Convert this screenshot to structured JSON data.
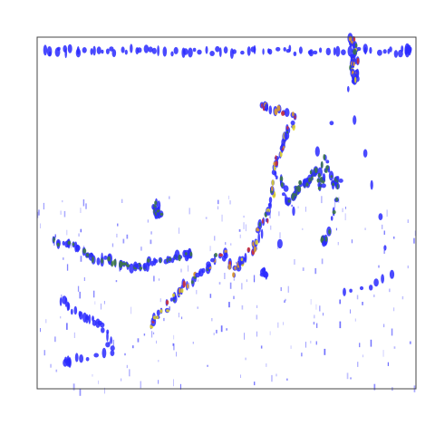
{
  "chart_data": {
    "type": "heatmap",
    "title": "",
    "xlabel": "",
    "ylabel": "",
    "xlim": [
      0,
      1
    ],
    "ylim": [
      0,
      1
    ],
    "grid": false,
    "legend": "none",
    "colormap": [
      "#2a2aff",
      "#3d7a3d",
      "#e5d820",
      "#e5a020",
      "#d03030"
    ],
    "traces": [
      {
        "name": "top-band",
        "intensity": "low",
        "points": [
          [
            0.02,
            0.96
          ],
          [
            0.08,
            0.96
          ],
          [
            0.15,
            0.96
          ],
          [
            0.22,
            0.96
          ],
          [
            0.3,
            0.96
          ],
          [
            0.38,
            0.96
          ],
          [
            0.46,
            0.96
          ],
          [
            0.54,
            0.96
          ],
          [
            0.62,
            0.96
          ],
          [
            0.7,
            0.96
          ],
          [
            0.78,
            0.96
          ],
          [
            0.86,
            0.96
          ],
          [
            0.94,
            0.96
          ],
          [
            0.98,
            0.96
          ]
        ]
      },
      {
        "name": "top-right-spike",
        "intensity": "high",
        "points": [
          [
            0.83,
            1.0
          ],
          [
            0.835,
            0.97
          ],
          [
            0.84,
            0.94
          ],
          [
            0.835,
            0.91
          ],
          [
            0.84,
            0.88
          ]
        ]
      },
      {
        "name": "main-curve",
        "intensity": "high",
        "points": [
          [
            0.3,
            0.18
          ],
          [
            0.34,
            0.23
          ],
          [
            0.38,
            0.28
          ],
          [
            0.42,
            0.32
          ],
          [
            0.45,
            0.35
          ],
          [
            0.49,
            0.39
          ],
          [
            0.52,
            0.33
          ],
          [
            0.55,
            0.37
          ],
          [
            0.58,
            0.42
          ],
          [
            0.6,
            0.48
          ],
          [
            0.62,
            0.55
          ],
          [
            0.63,
            0.62
          ],
          [
            0.64,
            0.68
          ],
          [
            0.66,
            0.72
          ],
          [
            0.68,
            0.78
          ],
          [
            0.6,
            0.8
          ]
        ]
      },
      {
        "name": "right-cluster",
        "intensity": "medium",
        "points": [
          [
            0.64,
            0.6
          ],
          [
            0.66,
            0.53
          ],
          [
            0.68,
            0.55
          ],
          [
            0.7,
            0.58
          ],
          [
            0.72,
            0.6
          ],
          [
            0.74,
            0.62
          ],
          [
            0.75,
            0.57
          ],
          [
            0.76,
            0.65
          ],
          [
            0.78,
            0.58
          ],
          [
            0.8,
            0.6
          ],
          [
            0.76,
            0.42
          ]
        ]
      },
      {
        "name": "left-arc",
        "intensity": "medium",
        "points": [
          [
            0.04,
            0.42
          ],
          [
            0.08,
            0.41
          ],
          [
            0.12,
            0.39
          ],
          [
            0.16,
            0.37
          ],
          [
            0.2,
            0.36
          ],
          [
            0.24,
            0.35
          ],
          [
            0.28,
            0.35
          ],
          [
            0.32,
            0.36
          ],
          [
            0.36,
            0.37
          ],
          [
            0.4,
            0.38
          ]
        ]
      },
      {
        "name": "left-isolated",
        "intensity": "medium",
        "points": [
          [
            0.31,
            0.53
          ],
          [
            0.32,
            0.5
          ]
        ]
      },
      {
        "name": "lower-left",
        "intensity": "low",
        "points": [
          [
            0.06,
            0.25
          ],
          [
            0.1,
            0.22
          ],
          [
            0.14,
            0.2
          ],
          [
            0.18,
            0.17
          ],
          [
            0.2,
            0.1
          ],
          [
            0.08,
            0.08
          ]
        ]
      },
      {
        "name": "isolated-points",
        "intensity": "low",
        "points": [
          [
            0.81,
            0.27
          ],
          [
            0.94,
            0.32
          ],
          [
            0.82,
            0.85
          ],
          [
            0.6,
            0.33
          ]
        ]
      }
    ]
  }
}
